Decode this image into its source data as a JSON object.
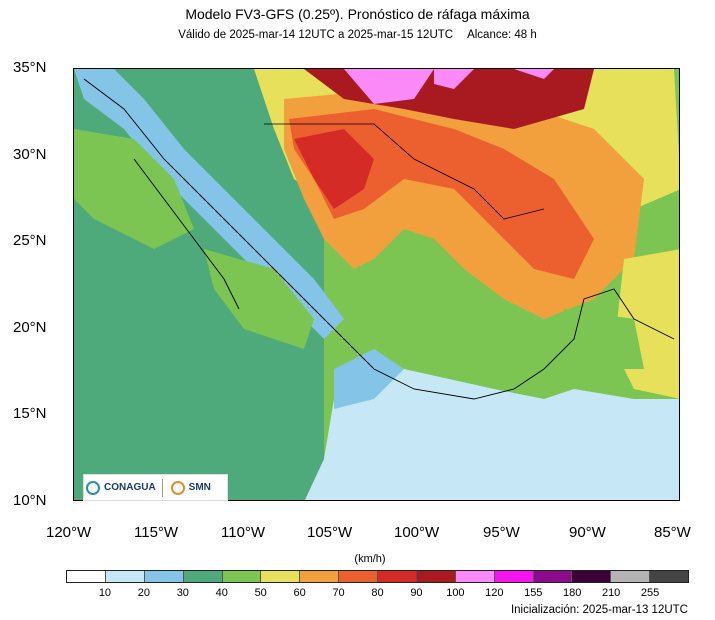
{
  "header": {
    "title": "Modelo FV3-GFS (0.25º). Pronóstico de ráfaga máxima",
    "validity": "Válido de 2025-mar-14 12UTC a 2025-mar-15 12UTC",
    "range": "Alcance: 48 h"
  },
  "map": {
    "lat_labels": [
      "35°N",
      "30°N",
      "25°N",
      "20°N",
      "15°N",
      "10°N"
    ],
    "lon_labels": [
      "120°W",
      "115°W",
      "110°W",
      "105°W",
      "100°W",
      "95°W",
      "90°W",
      "85°W"
    ],
    "extent": {
      "lon": [
        -120,
        -85
      ],
      "lat": [
        10,
        35
      ]
    }
  },
  "colorbar": {
    "unit_label": "(km/h)",
    "ticks": [
      "10",
      "20",
      "30",
      "40",
      "50",
      "60",
      "70",
      "80",
      "90",
      "100",
      "120",
      "155",
      "180",
      "210",
      "255"
    ],
    "colors": [
      "#ffffff",
      "#c6e8f6",
      "#83c4e7",
      "#4ea97b",
      "#7cc553",
      "#e6e05a",
      "#f2a03e",
      "#ec6030",
      "#d52b26",
      "#a81a20",
      "#fa8af8",
      "#f514f0",
      "#8b0b8b",
      "#3c0038",
      "#b4b4b4",
      "#444444"
    ]
  },
  "logos": {
    "conagua": "CONAGUA",
    "smn": "SMN"
  },
  "footer": {
    "init": "Inicialización: 2025-mar-13 12UTC"
  }
}
